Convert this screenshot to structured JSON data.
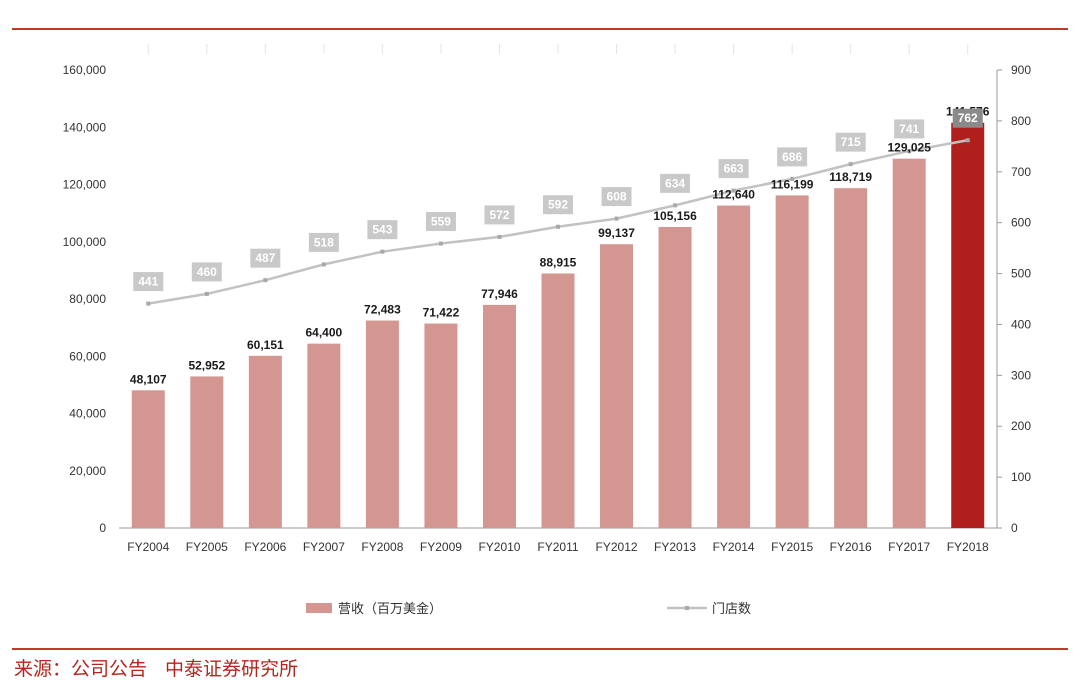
{
  "chart_data": {
    "type": "bar",
    "categories": [
      "FY2004",
      "FY2005",
      "FY2006",
      "FY2007",
      "FY2008",
      "FY2009",
      "FY2010",
      "FY2011",
      "FY2012",
      "FY2013",
      "FY2014",
      "FY2015",
      "FY2016",
      "FY2017",
      "FY2018"
    ],
    "series": [
      {
        "name": "营收（百万美金）",
        "type": "bar",
        "axis": "left",
        "values": [
          48107,
          52952,
          60151,
          64400,
          72483,
          71422,
          77946,
          88915,
          99137,
          105156,
          112640,
          116199,
          118719,
          129025,
          141576
        ],
        "labels": [
          "48,107",
          "52,952",
          "60,151",
          "64,400",
          "72,483",
          "71,422",
          "77,946",
          "88,915",
          "99,137",
          "105,156",
          "112,640",
          "116,199",
          "118,719",
          "129,025",
          "141,576"
        ],
        "color": "#d49690",
        "highlight_color": "#b11f1c",
        "highlight_category": "FY2018"
      },
      {
        "name": "门店数",
        "type": "line",
        "axis": "right",
        "values": [
          441,
          460,
          487,
          518,
          543,
          559,
          572,
          592,
          608,
          634,
          663,
          686,
          715,
          741,
          762
        ],
        "labels": [
          "441",
          "460",
          "487",
          "518",
          "543",
          "559",
          "572",
          "592",
          "608",
          "634",
          "663",
          "686",
          "715",
          "741",
          "762"
        ],
        "color": "#c2c2c2",
        "label_box_color": "#c9c9c9",
        "highlight_label_box_color": "#8a8a8a"
      }
    ],
    "y_left": {
      "ticks": [
        0,
        20000,
        40000,
        60000,
        80000,
        100000,
        120000,
        140000,
        160000
      ],
      "tick_labels": [
        "0",
        "20,000",
        "40,000",
        "60,000",
        "80,000",
        "100,000",
        "120,000",
        "140,000",
        "160,000"
      ],
      "range": [
        0,
        160000
      ]
    },
    "y_right": {
      "ticks": [
        0,
        100,
        200,
        300,
        400,
        500,
        600,
        700,
        800,
        900
      ],
      "tick_labels": [
        "0",
        "100",
        "200",
        "300",
        "400",
        "500",
        "600",
        "700",
        "800",
        "900"
      ],
      "range": [
        0,
        900
      ]
    },
    "grid": false,
    "legend_placement": "bottom"
  },
  "source": {
    "prefix": "来源：",
    "publisher": "公司公告",
    "institution": "中泰证券研究所"
  }
}
